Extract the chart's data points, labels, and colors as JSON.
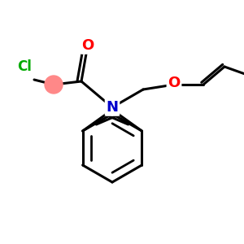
{
  "bg_color": "#ffffff",
  "colors": {
    "N": "#0000cc",
    "O": "#ff0000",
    "Cl": "#00aa00",
    "bond": "#000000",
    "pink": "#ff8888"
  },
  "figsize": [
    3.0,
    3.0
  ],
  "dpi": 100
}
